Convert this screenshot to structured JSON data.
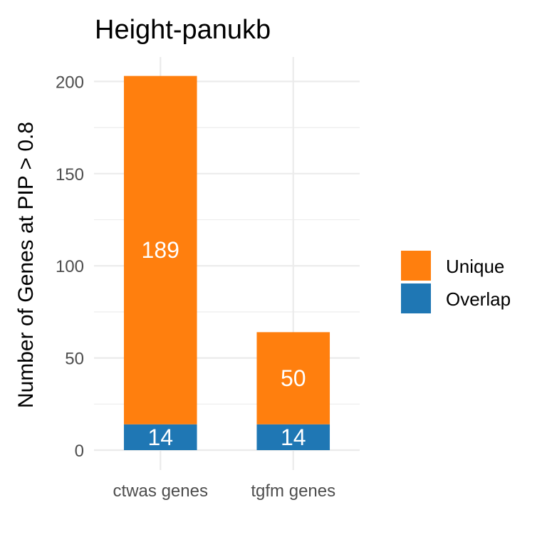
{
  "chart_data": {
    "type": "bar",
    "stacked": true,
    "title": "Height-panukb",
    "xlabel": "",
    "ylabel": "Number of Genes at PIP > 0.8",
    "categories": [
      "ctwas genes",
      "tgfm genes"
    ],
    "series": [
      {
        "name": "Overlap",
        "values": [
          14,
          14
        ],
        "color": "#1f77b4"
      },
      {
        "name": "Unique",
        "values": [
          189,
          50
        ],
        "color": "#ff7f0e"
      }
    ],
    "data_labels": [
      [
        "14",
        "189"
      ],
      [
        "14",
        "50"
      ]
    ],
    "ylim": [
      0,
      203
    ],
    "y_ticks": [
      0,
      50,
      100,
      150,
      200
    ],
    "y_tick_labels": [
      "0",
      "50",
      "100",
      "150",
      "200"
    ],
    "grid": true,
    "legend": {
      "position": "right",
      "entries": [
        "Unique",
        "Overlap"
      ],
      "colors": [
        "#ff7f0e",
        "#1f77b4"
      ]
    }
  }
}
